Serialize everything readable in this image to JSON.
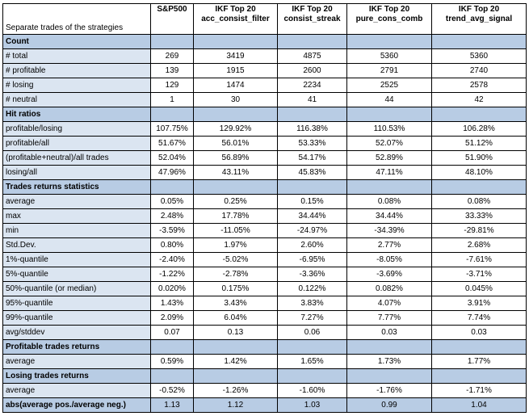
{
  "table": {
    "title": "Separate trades of the strategies",
    "columns": [
      {
        "line1": "S&P500",
        "line2": ""
      },
      {
        "line1": "IKF Top 20",
        "line2": "acc_consist_filter"
      },
      {
        "line1": "IKF Top 20",
        "line2": "consist_streak"
      },
      {
        "line1": "IKF Top 20",
        "line2": "pure_cons_comb"
      },
      {
        "line1": "IKF Top 20",
        "line2": "trend_avg_signal"
      }
    ],
    "sections": [
      {
        "title": "Count",
        "rows": [
          {
            "label": "# total",
            "values": [
              "269",
              "3419",
              "4875",
              "5360",
              "5360"
            ]
          },
          {
            "label": "# profitable",
            "values": [
              "139",
              "1915",
              "2600",
              "2791",
              "2740"
            ]
          },
          {
            "label": "# losing",
            "values": [
              "129",
              "1474",
              "2234",
              "2525",
              "2578"
            ]
          },
          {
            "label": "# neutral",
            "values": [
              "1",
              "30",
              "41",
              "44",
              "42"
            ]
          }
        ]
      },
      {
        "title": "Hit ratios",
        "rows": [
          {
            "label": "profitable/losing",
            "values": [
              "107.75%",
              "129.92%",
              "116.38%",
              "110.53%",
              "106.28%"
            ]
          },
          {
            "label": "profitable/all",
            "values": [
              "51.67%",
              "56.01%",
              "53.33%",
              "52.07%",
              "51.12%"
            ]
          },
          {
            "label": "(profitable+neutral)/all trades",
            "values": [
              "52.04%",
              "56.89%",
              "54.17%",
              "52.89%",
              "51.90%"
            ]
          },
          {
            "label": "losing/all",
            "values": [
              "47.96%",
              "43.11%",
              "45.83%",
              "47.11%",
              "48.10%"
            ]
          }
        ]
      },
      {
        "title": "Trades returns statistics",
        "rows": [
          {
            "label": "average",
            "values": [
              "0.05%",
              "0.25%",
              "0.15%",
              "0.08%",
              "0.08%"
            ]
          },
          {
            "label": "max",
            "values": [
              "2.48%",
              "17.78%",
              "34.44%",
              "34.44%",
              "33.33%"
            ]
          },
          {
            "label": "min",
            "values": [
              "-3.59%",
              "-11.05%",
              "-24.97%",
              "-34.39%",
              "-29.81%"
            ]
          },
          {
            "label": "Std.Dev.",
            "values": [
              "0.80%",
              "1.97%",
              "2.60%",
              "2.77%",
              "2.68%"
            ]
          },
          {
            "label": "1%-quantile",
            "values": [
              "-2.40%",
              "-5.02%",
              "-6.95%",
              "-8.05%",
              "-7.61%"
            ]
          },
          {
            "label": "5%-quantile",
            "values": [
              "-1.22%",
              "-2.78%",
              "-3.36%",
              "-3.69%",
              "-3.71%"
            ]
          },
          {
            "label": "50%-quantile (or median)",
            "values": [
              "0.020%",
              "0.175%",
              "0.122%",
              "0.082%",
              "0.045%"
            ]
          },
          {
            "label": "95%-quantile",
            "values": [
              "1.43%",
              "3.43%",
              "3.83%",
              "4.07%",
              "3.91%"
            ]
          },
          {
            "label": "99%-quantile",
            "values": [
              "2.09%",
              "6.04%",
              "7.27%",
              "7.77%",
              "7.74%"
            ]
          },
          {
            "label": "avg/stddev",
            "values": [
              "0.07",
              "0.13",
              "0.06",
              "0.03",
              "0.03"
            ]
          }
        ]
      },
      {
        "title": "Profitable trades returns",
        "rows": [
          {
            "label": "average",
            "values": [
              "0.59%",
              "1.42%",
              "1.65%",
              "1.73%",
              "1.77%"
            ]
          }
        ]
      },
      {
        "title": "Losing trades returns",
        "rows": [
          {
            "label": "average",
            "values": [
              "-0.52%",
              "-1.26%",
              "-1.60%",
              "-1.76%",
              "-1.71%"
            ]
          }
        ]
      }
    ],
    "final_row": {
      "label": "abs(average pos./average neg.)",
      "values": [
        "1.13",
        "1.12",
        "1.03",
        "0.99",
        "1.04"
      ]
    }
  },
  "colors": {
    "section_header": "#b8cce4",
    "label_band": "#dbe5f1"
  }
}
